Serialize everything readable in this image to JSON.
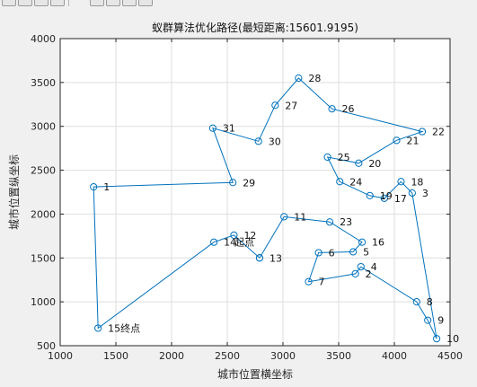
{
  "toolbar": {
    "icons": [
      "open-icon",
      "save-icon",
      "print-icon",
      "edit-icon",
      "zoom-icon",
      "pan-icon",
      "rotate-icon",
      "datatip-icon"
    ]
  },
  "chart_data": {
    "type": "line",
    "title": "蚁群算法优化路径(最短距离:15601.9195)",
    "xlabel": "城市位置横坐标",
    "ylabel": "城市位置纵坐标",
    "xlim": [
      1000,
      4500
    ],
    "ylim": [
      500,
      4000
    ],
    "xticks": [
      1000,
      1500,
      2000,
      2500,
      3000,
      3500,
      4000,
      4500
    ],
    "yticks": [
      500,
      1000,
      1500,
      2000,
      2500,
      3000,
      3500,
      4000
    ],
    "grid": true,
    "line_color": "#0072bd",
    "route": [
      {
        "x": 2790,
        "y": 1500,
        "label": "13"
      },
      {
        "x": 3010,
        "y": 1970,
        "label": "11"
      },
      {
        "x": 3420,
        "y": 1910,
        "label": "23"
      },
      {
        "x": 3710,
        "y": 1680,
        "label": "16"
      },
      {
        "x": 3630,
        "y": 1570,
        "label": "5"
      },
      {
        "x": 3320,
        "y": 1560,
        "label": "6"
      },
      {
        "x": 3230,
        "y": 1230,
        "label": "7"
      },
      {
        "x": 3650,
        "y": 1320,
        "label": "2"
      },
      {
        "x": 3700,
        "y": 1400,
        "label": "4"
      },
      {
        "x": 4200,
        "y": 1000,
        "label": "8"
      },
      {
        "x": 4300,
        "y": 790,
        "label": "9"
      },
      {
        "x": 4380,
        "y": 580,
        "label": "10"
      },
      {
        "x": 4160,
        "y": 2240,
        "label": "3"
      },
      {
        "x": 4060,
        "y": 2370,
        "label": "18"
      },
      {
        "x": 3910,
        "y": 2180,
        "label": "17"
      },
      {
        "x": 3780,
        "y": 2210,
        "label": "19"
      },
      {
        "x": 3510,
        "y": 2370,
        "label": "24"
      },
      {
        "x": 3400,
        "y": 2650,
        "label": "25"
      },
      {
        "x": 3680,
        "y": 2580,
        "label": "20"
      },
      {
        "x": 4020,
        "y": 2840,
        "label": "21"
      },
      {
        "x": 4250,
        "y": 2940,
        "label": "22"
      },
      {
        "x": 3440,
        "y": 3200,
        "label": "26"
      },
      {
        "x": 3140,
        "y": 3550,
        "label": "28"
      },
      {
        "x": 2930,
        "y": 3240,
        "label": "27"
      },
      {
        "x": 2780,
        "y": 2830,
        "label": "30"
      },
      {
        "x": 2370,
        "y": 2980,
        "label": "31"
      },
      {
        "x": 2550,
        "y": 2360,
        "label": "29"
      },
      {
        "x": 1300,
        "y": 2310,
        "label": "1"
      },
      {
        "x": 1340,
        "y": 700,
        "label": "15终点"
      },
      {
        "x": 2380,
        "y": 1680,
        "label": "14"
      },
      {
        "x": 2560,
        "y": 1760,
        "label": "12"
      },
      {
        "x": 2790,
        "y": 1500,
        "label": "起点"
      }
    ]
  }
}
